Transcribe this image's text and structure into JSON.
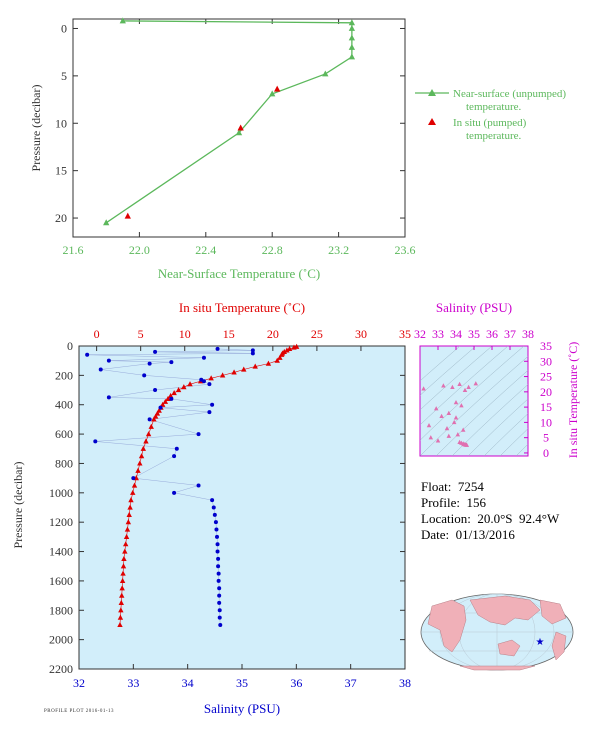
{
  "float_info": {
    "float": "Float:  7254",
    "profile": "Profile:  156",
    "location": "Location:  20.0°S  92.4°W",
    "date": "Date:  01/13/2016"
  },
  "footer_text": "PROFILE PLOT 2016-01-13",
  "colors": {
    "green": "#5cb85c",
    "red": "#e00000",
    "blue": "#0000cc",
    "magenta": "#cc00cc",
    "pink": "#e070b0",
    "ocean": "#d2eefa",
    "land": "#f0b0b8",
    "axis_dark": "#333333"
  },
  "chart_data": [
    {
      "type": "line",
      "name": "near-surface",
      "xlabel": "Near-Surface Temperature (˚C)",
      "ylabel": "Pressure (decibar)",
      "xlim": [
        21.6,
        23.6
      ],
      "ylim": [
        22,
        -1
      ],
      "xticks": [
        21.6,
        22.0,
        22.4,
        22.8,
        23.2,
        23.6
      ],
      "xtick_labels": [
        "21.6",
        "22.0",
        "22.4",
        "22.8",
        "23.2",
        "23.6"
      ],
      "yticks": [
        0,
        5,
        10,
        15,
        20
      ],
      "ytick_labels": [
        "0",
        "5",
        "10",
        "15",
        "20"
      ],
      "legend_position": "right",
      "series": [
        {
          "name": "Near-surface (unpumped) temperature.",
          "marker": "triangle",
          "color": "green",
          "line": true,
          "x": [
            21.9,
            23.28,
            23.28,
            23.28,
            23.28,
            23.28,
            23.12,
            22.8,
            22.6,
            21.8
          ],
          "y": [
            -0.8,
            -0.6,
            0.0,
            1.0,
            2.0,
            3.0,
            4.8,
            6.9,
            11.0,
            20.5
          ]
        },
        {
          "name": "In situ (pumped) temperature.",
          "marker": "triangle",
          "color": "red",
          "line": false,
          "x": [
            22.83,
            22.61,
            21.93
          ],
          "y": [
            6.4,
            10.5,
            19.8
          ]
        }
      ],
      "grid": false
    },
    {
      "type": "scatter",
      "name": "profile",
      "xlabel": "Salinity (PSU)",
      "x2label": "In situ Temperature (˚C)",
      "ylabel": "Pressure (decibar)",
      "xlim": [
        32,
        38
      ],
      "x2lim": [
        -2,
        35
      ],
      "ylim": [
        2200,
        0
      ],
      "xticks": [
        32,
        33,
        34,
        35,
        36,
        37,
        38
      ],
      "xtick_labels": [
        "32",
        "33",
        "34",
        "35",
        "36",
        "37",
        "38"
      ],
      "x2ticks": [
        0,
        5,
        10,
        15,
        20,
        25,
        30,
        35
      ],
      "x2tick_labels": [
        "0",
        "5",
        "10",
        "15",
        "20",
        "25",
        "30",
        "35"
      ],
      "yticks": [
        0,
        200,
        400,
        600,
        800,
        1000,
        1200,
        1400,
        1600,
        1800,
        2000,
        2200
      ],
      "ytick_labels": [
        "0",
        "200",
        "400",
        "600",
        "800",
        "1000",
        "1200",
        "1400",
        "1600",
        "1800",
        "2000",
        "2200"
      ],
      "series": [
        {
          "name": "In situ Temperature",
          "color": "red",
          "marker": "triangle",
          "axis": "x2",
          "pressure": [
            5,
            10,
            20,
            30,
            40,
            50,
            60,
            80,
            100,
            120,
            140,
            160,
            180,
            200,
            220,
            240,
            260,
            280,
            300,
            320,
            340,
            360,
            380,
            400,
            420,
            440,
            460,
            480,
            500,
            550,
            600,
            650,
            700,
            750,
            800,
            850,
            900,
            950,
            1000,
            1050,
            1100,
            1150,
            1200,
            1250,
            1300,
            1350,
            1400,
            1450,
            1500,
            1550,
            1600,
            1650,
            1700,
            1750,
            1800,
            1850,
            1900
          ],
          "values": [
            22.7,
            22.4,
            21.9,
            21.6,
            21.3,
            21.1,
            21.0,
            20.8,
            20.5,
            19.5,
            18.0,
            16.7,
            15.6,
            14.3,
            13.0,
            11.8,
            10.6,
            9.9,
            9.3,
            8.8,
            8.4,
            8.1,
            7.8,
            7.5,
            7.3,
            7.1,
            6.9,
            6.7,
            6.5,
            6.2,
            5.9,
            5.6,
            5.3,
            5.1,
            4.9,
            4.7,
            4.5,
            4.3,
            4.1,
            3.9,
            3.8,
            3.7,
            3.6,
            3.5,
            3.4,
            3.3,
            3.2,
            3.1,
            3.05,
            3.0,
            2.95,
            2.9,
            2.85,
            2.8,
            2.75,
            2.7,
            2.65
          ]
        },
        {
          "name": "Salinity",
          "color": "blue",
          "marker": "dot",
          "axis": "x",
          "pressure": [
            20,
            30,
            40,
            50,
            60,
            80,
            100,
            110,
            120,
            160,
            200,
            230,
            240,
            260,
            300,
            350,
            360,
            400,
            420,
            450,
            500,
            600,
            650,
            700,
            750,
            900,
            950,
            1000,
            1050,
            1100,
            1150,
            1200,
            1250,
            1300,
            1350,
            1400,
            1450,
            1500,
            1550,
            1600,
            1650,
            1700,
            1750,
            1800,
            1850,
            1900
          ],
          "values": [
            34.55,
            35.2,
            33.4,
            35.2,
            32.15,
            34.3,
            32.55,
            33.7,
            33.3,
            32.4,
            33.2,
            34.25,
            34.3,
            34.4,
            33.4,
            32.55,
            33.7,
            34.45,
            33.5,
            34.4,
            33.3,
            34.2,
            32.3,
            33.8,
            33.75,
            33.0,
            34.2,
            33.75,
            34.45,
            34.48,
            34.5,
            34.52,
            34.53,
            34.54,
            34.55,
            34.55,
            34.56,
            34.56,
            34.57,
            34.57,
            34.58,
            34.58,
            34.58,
            34.59,
            34.59,
            34.6
          ]
        }
      ],
      "grid": false
    },
    {
      "type": "scatter",
      "name": "TS diagram",
      "xlabel": "Salinity (PSU)",
      "ylabel": "In situ Temperature (˚C)",
      "xlim": [
        32,
        38
      ],
      "ylim": [
        -1,
        35
      ],
      "xticks": [
        32,
        33,
        34,
        35,
        36,
        37,
        38
      ],
      "xtick_labels": [
        "32",
        "33",
        "34",
        "35",
        "36",
        "37",
        "38"
      ],
      "yticks": [
        0,
        5,
        10,
        15,
        20,
        25,
        30,
        35
      ],
      "ytick_labels": [
        "0",
        "5",
        "10",
        "15",
        "20",
        "25",
        "30",
        "35"
      ],
      "series": [
        {
          "name": "T/S points",
          "color": "pink",
          "marker": "triangle",
          "x": [
            32.2,
            33.3,
            33.8,
            34.2,
            34.5,
            35.1,
            34.7,
            34.0,
            33.6,
            32.9,
            33.2,
            34.3,
            33.9,
            34.0,
            33.5,
            32.5,
            34.4,
            34.1,
            33.6,
            33.0,
            32.6,
            34.2,
            34.3,
            34.4,
            34.45,
            34.5,
            34.55,
            34.58,
            34.6
          ],
          "y": [
            21.0,
            22.0,
            21.5,
            22.5,
            20.5,
            22.7,
            21.5,
            16.5,
            13.0,
            14.5,
            12.0,
            15.5,
            10.0,
            11.5,
            8.0,
            9.0,
            7.5,
            6.0,
            5.5,
            4.0,
            5.0,
            3.5,
            3.2,
            3.0,
            2.8,
            2.7,
            2.65,
            2.6,
            2.55
          ]
        }
      ]
    }
  ]
}
